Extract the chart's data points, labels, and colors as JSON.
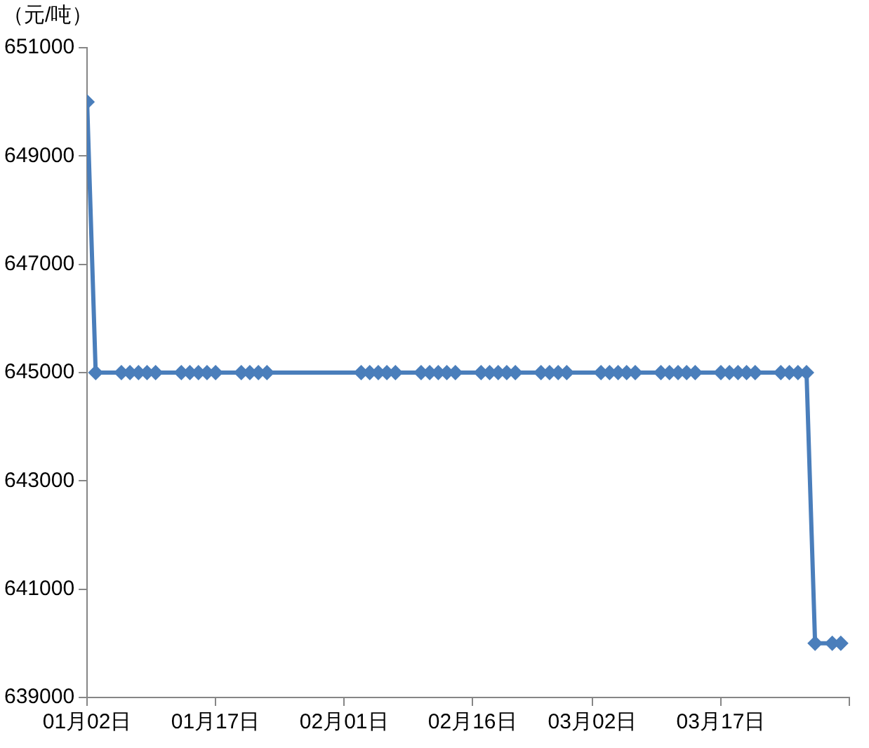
{
  "chart_data": {
    "type": "line",
    "ylabel": "（元/吨）",
    "x": [
      "--01-02",
      "--01-03",
      "--01-06",
      "--01-07",
      "--01-08",
      "--01-09",
      "--01-10",
      "--01-13",
      "--01-14",
      "--01-15",
      "--01-16",
      "--01-17",
      "--01-20",
      "--01-21",
      "--01-22",
      "--01-23",
      "--02-03",
      "--02-04",
      "--02-05",
      "--02-06",
      "--02-07",
      "--02-10",
      "--02-11",
      "--02-12",
      "--02-13",
      "--02-14",
      "--02-17",
      "--02-18",
      "--02-19",
      "--02-20",
      "--02-21",
      "--02-24",
      "--02-25",
      "--02-26",
      "--02-27",
      "--03-03",
      "--03-04",
      "--03-05",
      "--03-06",
      "--03-07",
      "--03-10",
      "--03-11",
      "--03-12",
      "--03-13",
      "--03-14",
      "--03-17",
      "--03-18",
      "--03-19",
      "--03-20",
      "--03-21",
      "--03-24",
      "--03-25",
      "--03-26",
      "--03-27",
      "--03-28",
      "--03-30",
      "--03-31"
    ],
    "series": [
      {
        "color": "#4a7ebb",
        "values": [
          650000,
          645000,
          645000,
          645000,
          645000,
          645000,
          645000,
          645000,
          645000,
          645000,
          645000,
          645000,
          645000,
          645000,
          645000,
          645000,
          645000,
          645000,
          645000,
          645000,
          645000,
          645000,
          645000,
          645000,
          645000,
          645000,
          645000,
          645000,
          645000,
          645000,
          645000,
          645000,
          645000,
          645000,
          645000,
          645000,
          645000,
          645000,
          645000,
          645000,
          645000,
          645000,
          645000,
          645000,
          645000,
          645000,
          645000,
          645000,
          645000,
          645000,
          645000,
          645000,
          645000,
          645000,
          640000,
          640000,
          640000
        ]
      }
    ],
    "xlim": [
      "--01-02",
      "--04-01"
    ],
    "xticks": [
      {
        "value": "--01-02",
        "label": "01月02日"
      },
      {
        "value": "--01-17",
        "label": "01月17日"
      },
      {
        "value": "--02-01",
        "label": "02月01日"
      },
      {
        "value": "--02-16",
        "label": "02月16日"
      },
      {
        "value": "--03-02",
        "label": "03月02日"
      },
      {
        "value": "--03-17",
        "label": "03月17日"
      },
      {
        "value": "--04-01",
        "label": null
      }
    ],
    "ylim": [
      639000,
      651000
    ],
    "yticks": [
      639000,
      641000,
      643000,
      645000,
      647000,
      649000,
      651000
    ],
    "marker": "diamond",
    "line_style": "solid",
    "grid": false,
    "legend": false
  }
}
